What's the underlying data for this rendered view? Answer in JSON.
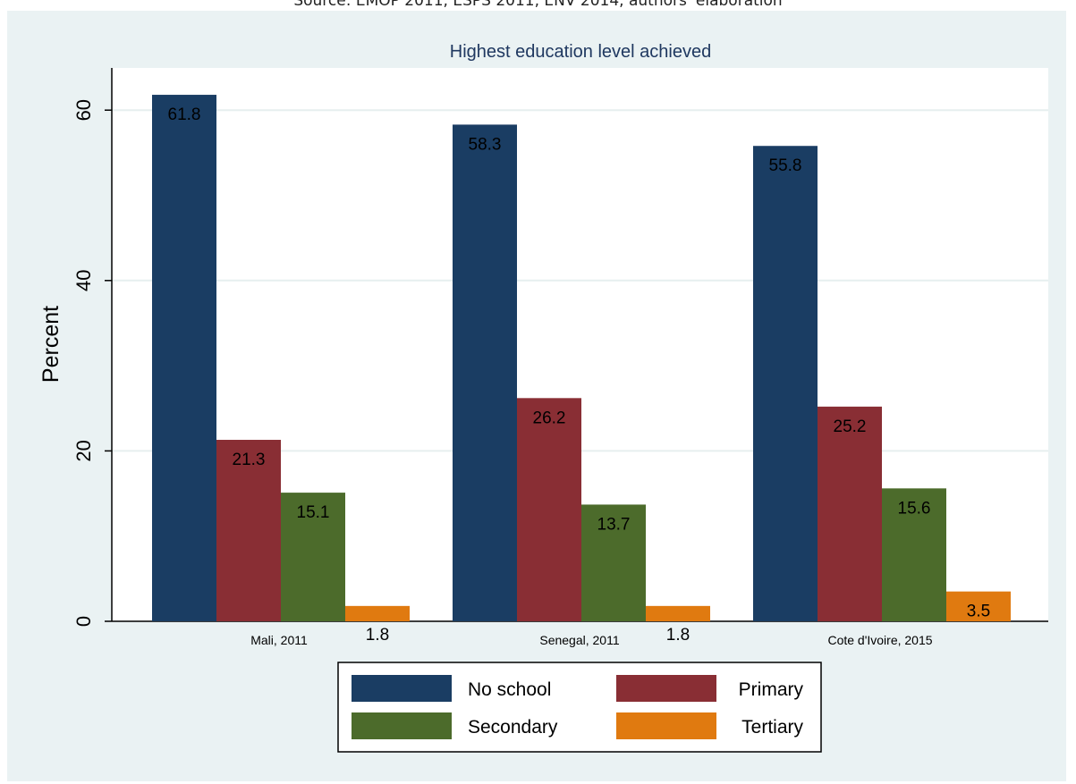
{
  "source_note": "Source: EMOP 2011, ESPS 2011, ENV 2014, authors' elaboration",
  "chart_data": {
    "type": "bar",
    "title": "Highest education level achieved",
    "xlabel": "",
    "ylabel": "Percent",
    "ylim": [
      0,
      66
    ],
    "yticks": [
      0,
      20,
      40,
      60
    ],
    "grid": true,
    "legend_position": "bottom",
    "categories": [
      "Mali, 2011",
      "Senegal, 2011",
      "Cote d'Ivoire, 2015"
    ],
    "series": [
      {
        "name": "No school",
        "color": "#1a3d63",
        "values": [
          61.8,
          58.3,
          55.8
        ]
      },
      {
        "name": "Primary",
        "color": "#892e34",
        "values": [
          21.3,
          26.2,
          25.2
        ]
      },
      {
        "name": "Secondary",
        "color": "#4c6b2b",
        "values": [
          15.1,
          13.7,
          15.6
        ]
      },
      {
        "name": "Tertiary",
        "color": "#e07a10",
        "values": [
          1.8,
          1.8,
          3.5
        ]
      }
    ],
    "colors": {
      "outer_background": "#eaf2f3",
      "plot_background": "#ffffff",
      "gridline": "#e6efef",
      "title": "#1f3860"
    }
  }
}
